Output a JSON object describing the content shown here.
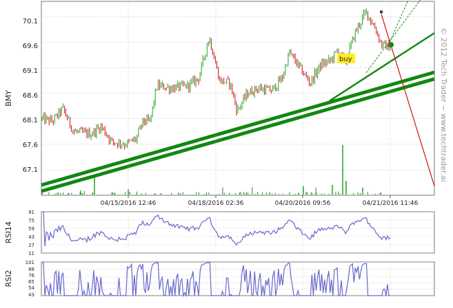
{
  "watermark": "© 2012 Tech Trader ~ www.techtrader.ai",
  "colors": {
    "up": "#22a022",
    "down": "#cc1111",
    "trend": "#118811",
    "rsi": "#6666cc",
    "volume": "#119911",
    "grid": "#aaaaaa"
  },
  "chart_data": [
    {
      "type": "candlestick",
      "ylabel": "BMY",
      "ylim": [
        66.6,
        70.4
      ],
      "y_ticks": [
        "70.1",
        "69.6",
        "69.1",
        "68.6",
        "68.1",
        "67.6",
        "67.1"
      ],
      "x_ticks": [
        "04/15/2016 12:46",
        "04/18/2016 02:36",
        "04/20/2016 09:56",
        "04/21/2016 11:46"
      ],
      "annotation": "buy",
      "key_points": [
        {
          "t": 0.0,
          "price": 68.1
        },
        {
          "t": 0.03,
          "price": 68.05
        },
        {
          "t": 0.06,
          "price": 68.3
        },
        {
          "t": 0.09,
          "price": 67.85
        },
        {
          "t": 0.14,
          "price": 67.8
        },
        {
          "t": 0.17,
          "price": 67.95
        },
        {
          "t": 0.2,
          "price": 67.65
        },
        {
          "t": 0.24,
          "price": 67.6
        },
        {
          "t": 0.27,
          "price": 67.7
        },
        {
          "t": 0.29,
          "price": 68.05
        },
        {
          "t": 0.31,
          "price": 68.05
        },
        {
          "t": 0.33,
          "price": 68.75
        },
        {
          "t": 0.37,
          "price": 68.7
        },
        {
          "t": 0.42,
          "price": 68.75
        },
        {
          "t": 0.45,
          "price": 68.9
        },
        {
          "t": 0.48,
          "price": 69.7
        },
        {
          "t": 0.51,
          "price": 68.85
        },
        {
          "t": 0.54,
          "price": 68.8
        },
        {
          "t": 0.56,
          "price": 68.25
        },
        {
          "t": 0.59,
          "price": 68.6
        },
        {
          "t": 0.62,
          "price": 68.7
        },
        {
          "t": 0.66,
          "price": 68.65
        },
        {
          "t": 0.69,
          "price": 68.9
        },
        {
          "t": 0.71,
          "price": 69.4
        },
        {
          "t": 0.74,
          "price": 69.1
        },
        {
          "t": 0.77,
          "price": 68.8
        },
        {
          "t": 0.8,
          "price": 69.15
        },
        {
          "t": 0.83,
          "price": 69.25
        },
        {
          "t": 0.85,
          "price": 69.45
        },
        {
          "t": 0.87,
          "price": 69.2
        },
        {
          "t": 0.9,
          "price": 69.8
        },
        {
          "t": 0.93,
          "price": 70.2
        },
        {
          "t": 0.955,
          "price": 69.9
        },
        {
          "t": 0.975,
          "price": 69.55
        },
        {
          "t": 1.0,
          "price": 69.5
        }
      ]
    },
    {
      "type": "line",
      "ylabel": "RSI14",
      "ylim": [
        11,
        91
      ],
      "y_ticks": [
        "91",
        "75",
        "59",
        "43",
        "27",
        "11"
      ]
    },
    {
      "type": "line",
      "ylabel": "RSI2",
      "ylim": [
        43,
        101
      ],
      "y_ticks": [
        "101",
        "88",
        "76",
        "65",
        "54",
        "43"
      ]
    }
  ]
}
